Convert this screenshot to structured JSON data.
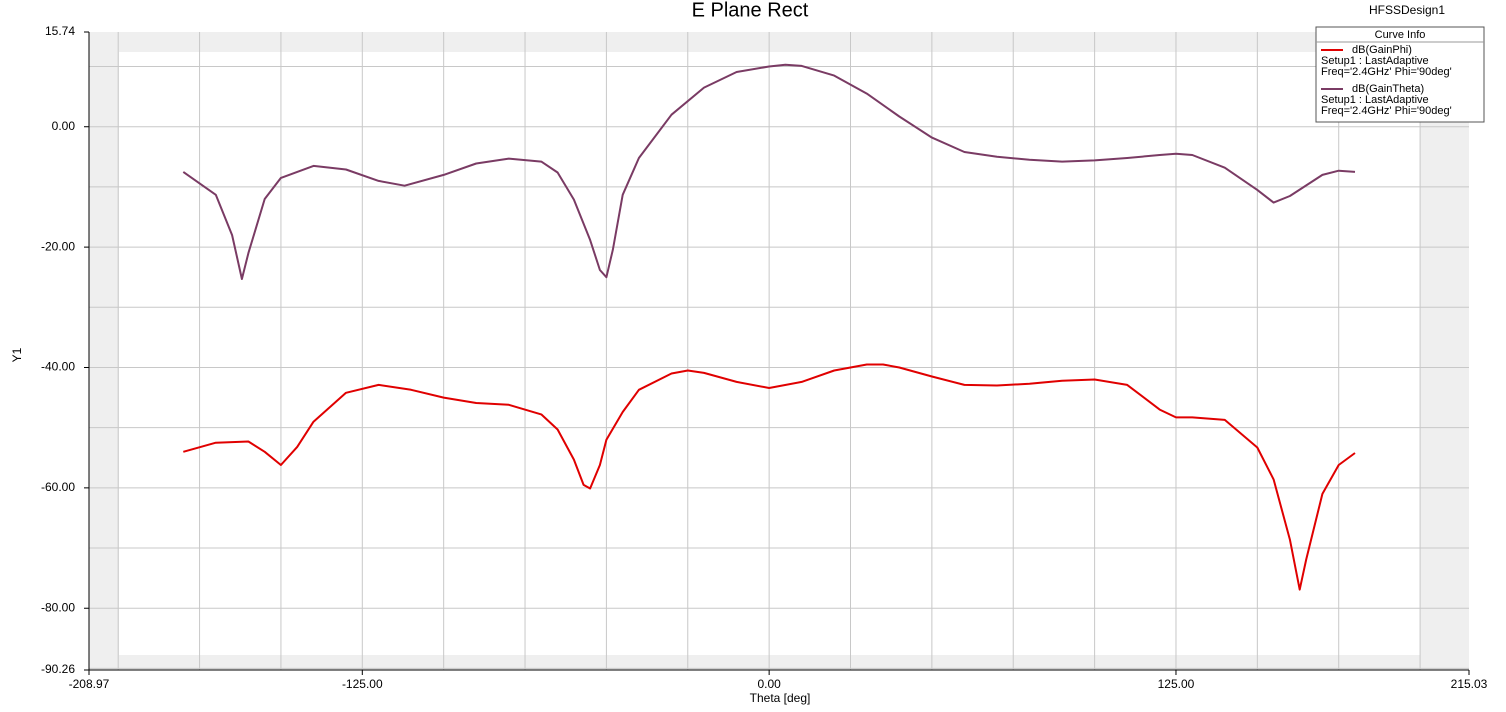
{
  "chart_data": {
    "type": "line",
    "title": "E Plane Rect",
    "design": "HFSSDesign1",
    "legend_title": "Curve Info",
    "xlabel": "Theta [deg]",
    "ylabel": "Y1",
    "xlim": [
      -208.97,
      215.03
    ],
    "ylim": [
      -90.26,
      15.74
    ],
    "xticks": [
      {
        "value": -208.97,
        "label": "-208.97"
      },
      {
        "value": -125,
        "label": "-125.00"
      },
      {
        "value": 0,
        "label": "0.00"
      },
      {
        "value": 125,
        "label": "125.00"
      },
      {
        "value": 215.03,
        "label": "215.03"
      }
    ],
    "yticks": [
      {
        "value": 15.74,
        "label": "15.74"
      },
      {
        "value": 0,
        "label": "0.00"
      },
      {
        "value": -20,
        "label": "-20.00"
      },
      {
        "value": -40,
        "label": "-40.00"
      },
      {
        "value": -60,
        "label": "-60.00"
      },
      {
        "value": -80,
        "label": "-80.00"
      },
      {
        "value": -90.26,
        "label": "-90.26"
      }
    ],
    "xgrid": [
      -200,
      -175,
      -150,
      -125,
      -100,
      -75,
      -50,
      -25,
      0,
      25,
      50,
      75,
      100,
      125,
      150,
      175,
      200
    ],
    "ygrid": [
      10,
      0,
      -10,
      -20,
      -30,
      -40,
      -50,
      -60,
      -70,
      -80,
      -90
    ],
    "grid": true,
    "legend": "upper right",
    "series": [
      {
        "name": "dB(GainPhi)",
        "setup": "Setup1 : LastAdaptive",
        "params": "Freq='2.4GHz' Phi='90deg'",
        "color": "#e00000",
        "x": [
          -180,
          -170,
          -160,
          -155,
          -150,
          -145,
          -140,
          -130,
          -120,
          -110,
          -100,
          -90,
          -80,
          -70,
          -65,
          -60,
          -57,
          -55,
          -52,
          -50,
          -45,
          -40,
          -30,
          -25,
          -20,
          -10,
          0,
          10,
          20,
          30,
          35,
          40,
          50,
          60,
          70,
          80,
          90,
          100,
          110,
          120,
          125,
          130,
          140,
          150,
          155,
          160,
          163,
          165,
          170,
          175,
          180
        ],
        "values": [
          -54,
          -52.5,
          -52.3,
          -54,
          -56.2,
          -53.2,
          -49,
          -44.2,
          -42.9,
          -43.7,
          -45,
          -45.9,
          -46.2,
          -47.8,
          -50.3,
          -55.3,
          -59.5,
          -60.1,
          -56.2,
          -52,
          -47.4,
          -43.7,
          -41,
          -40.5,
          -40.9,
          -42.4,
          -43.4,
          -42.4,
          -40.5,
          -39.5,
          -39.5,
          -40,
          -41.5,
          -42.9,
          -43,
          -42.7,
          -42.2,
          -42,
          -42.9,
          -47,
          -48.3,
          -48.3,
          -48.7,
          -53.3,
          -58.6,
          -68.6,
          -76.9,
          -71.9,
          -61,
          -56.2,
          -54.2
        ]
      },
      {
        "name": "dB(GainTheta)",
        "setup": "Setup1 : LastAdaptive",
        "params": "Freq='2.4GHz' Phi='90deg'",
        "color": "#7a3b64",
        "x": [
          -180,
          -170,
          -165,
          -162,
          -160,
          -155,
          -150,
          -140,
          -130,
          -120,
          -112,
          -100,
          -90,
          -80,
          -70,
          -65,
          -60,
          -55,
          -52,
          -50,
          -48,
          -45,
          -40,
          -30,
          -20,
          -10,
          0,
          5,
          10,
          20,
          30,
          40,
          50,
          60,
          70,
          80,
          90,
          100,
          110,
          120,
          125,
          130,
          140,
          150,
          155,
          160,
          170,
          175,
          180
        ],
        "values": [
          -7.5,
          -11.3,
          -18,
          -25.3,
          -21,
          -12,
          -8.5,
          -6.5,
          -7.1,
          -9,
          -9.8,
          -8,
          -6.1,
          -5.3,
          -5.8,
          -7.6,
          -12.1,
          -18.8,
          -23.8,
          -25,
          -20.4,
          -11.3,
          -5.2,
          2,
          6.5,
          9.1,
          10,
          10.3,
          10.1,
          8.5,
          5.5,
          1.7,
          -1.8,
          -4.2,
          -5,
          -5.5,
          -5.8,
          -5.6,
          -5.2,
          -4.7,
          -4.5,
          -4.7,
          -6.8,
          -10.5,
          -12.6,
          -11.5,
          -8,
          -7.3,
          -7.5
        ]
      }
    ]
  }
}
